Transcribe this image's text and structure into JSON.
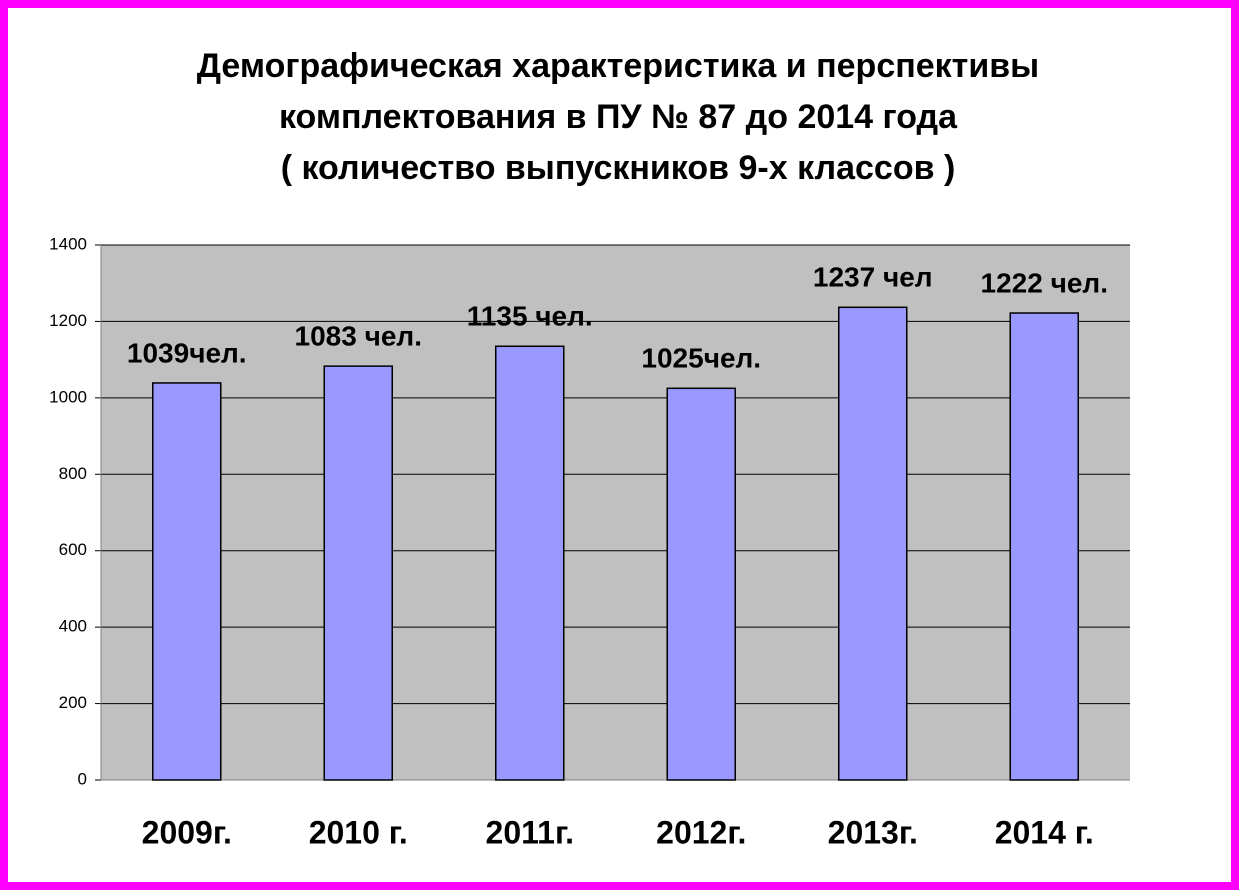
{
  "chart_data": {
    "type": "bar",
    "title": [
      "Демографическая характеристика и перспективы",
      "комплектования в ПУ № 87 до 2014 года",
      "( количество выпускников 9-х классов )"
    ],
    "categories": [
      "2009г.",
      "2010 г.",
      "2011г.",
      "2012г.",
      "2013г.",
      "2014 г."
    ],
    "values": [
      1039,
      1083,
      1135,
      1025,
      1237,
      1222
    ],
    "value_labels": [
      "1039чел.",
      "1083 чел.",
      "1135 чел.",
      "1025чел.",
      "1237 чел",
      "1222 чел."
    ],
    "color": "#9999ff",
    "ylim": [
      0,
      1400
    ],
    "yticks": [
      0,
      200,
      400,
      600,
      800,
      1000,
      1200,
      1400
    ],
    "grid": true
  }
}
